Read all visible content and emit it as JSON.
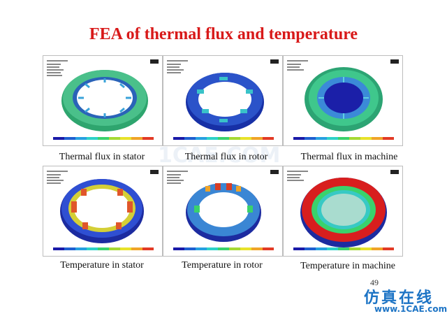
{
  "title": "FEA of thermal flux and temperature",
  "panels": [
    {
      "caption": "Thermal flux in stator",
      "scheme": "flux-stator"
    },
    {
      "caption": "Thermal flux in rotor",
      "scheme": "flux-rotor"
    },
    {
      "caption": "Thermal flux in machine",
      "scheme": "flux-machine"
    },
    {
      "caption": "Temperature in stator",
      "scheme": "temp-stator"
    },
    {
      "caption": "Temperature in rotor",
      "scheme": "temp-rotor"
    },
    {
      "caption": "Temperature in machine",
      "scheme": "temp-machine"
    }
  ],
  "page_number": "49",
  "watermark": {
    "cn": "仿真在线",
    "url": "www.1CAE.com",
    "center": "1CAE.COM"
  },
  "colors": {
    "title": "#d81919",
    "watermark": "#1d74c5"
  }
}
